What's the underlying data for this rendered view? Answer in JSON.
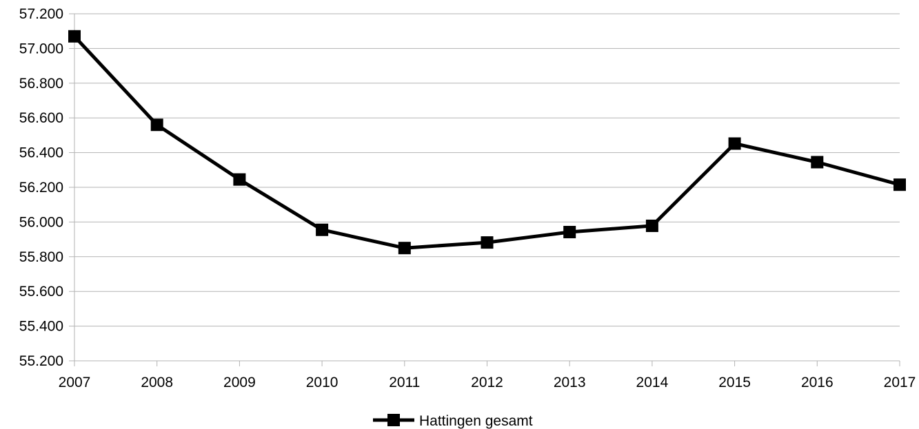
{
  "chart_data": {
    "type": "line",
    "x": [
      "2007",
      "2008",
      "2009",
      "2010",
      "2011",
      "2012",
      "2013",
      "2014",
      "2015",
      "2016",
      "2017"
    ],
    "series": [
      {
        "name": "Hattingen gesamt",
        "values": [
          57070,
          56560,
          56245,
          55955,
          55850,
          55882,
          55942,
          55978,
          56452,
          56345,
          56215
        ],
        "color": "#000000",
        "marker": "square"
      }
    ],
    "y_ticks": [
      "55.200",
      "55.400",
      "55.600",
      "55.800",
      "56.000",
      "56.200",
      "56.400",
      "56.600",
      "56.800",
      "57.000",
      "57.200"
    ],
    "ylim": [
      55200,
      57200
    ],
    "grid": true,
    "legend_position": "bottom-center"
  }
}
